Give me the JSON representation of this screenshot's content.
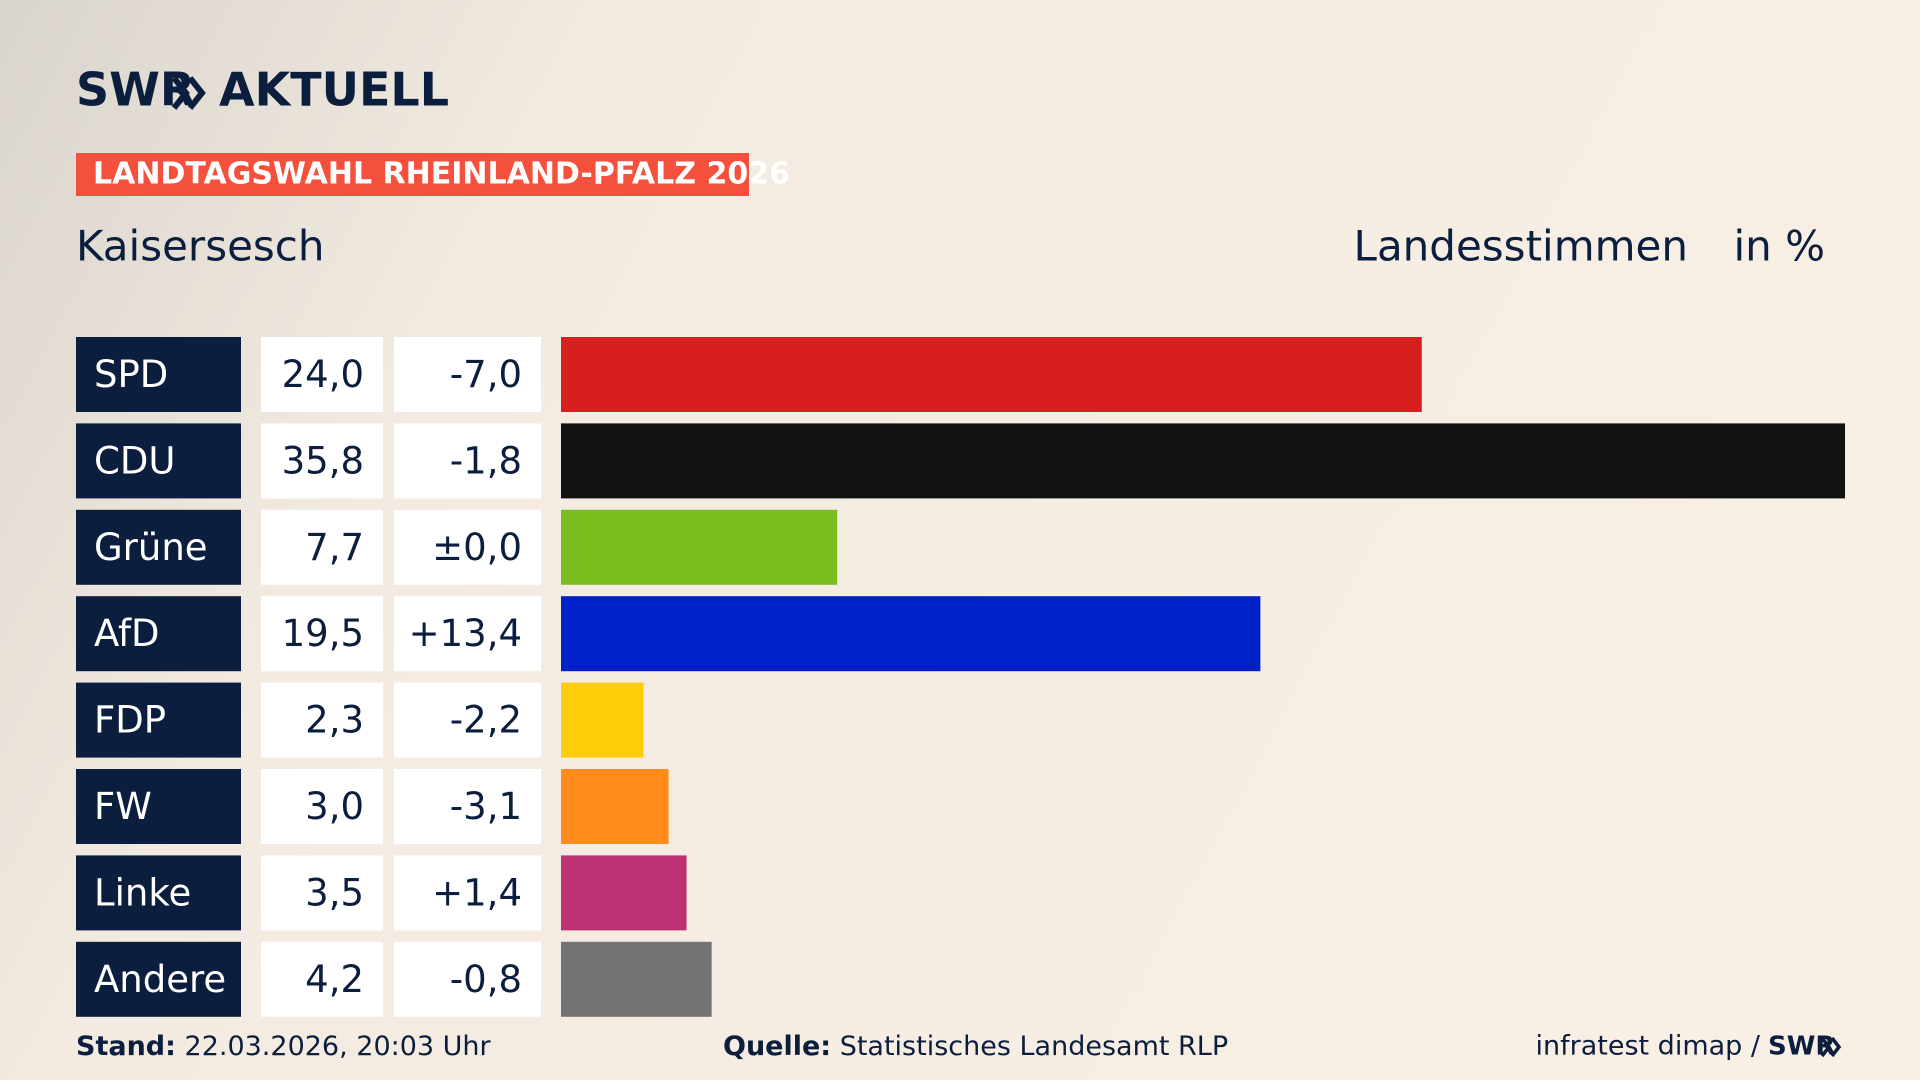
{
  "header": {
    "logo_left": "SWR",
    "logo_right": "AKTUELL",
    "banner": "LANDTAGSWAHL RHEINLAND-PFALZ 2026"
  },
  "chart_data": {
    "type": "bar",
    "title": "Kaisersesch",
    "subtitle": "Landesstimmen",
    "unit_label": "in %",
    "categories": [
      "SPD",
      "CDU",
      "Grüne",
      "AfD",
      "FDP",
      "FW",
      "Linke",
      "Andere"
    ],
    "values": [
      24.0,
      35.8,
      7.7,
      19.5,
      2.3,
      3.0,
      3.5,
      4.2
    ],
    "value_labels": [
      "24,0",
      "35,8",
      "7,7",
      "19,5",
      "2,3",
      "3,0",
      "3,5",
      "4,2"
    ],
    "changes": [
      -7.0,
      -1.8,
      0.0,
      13.4,
      -2.2,
      -3.1,
      1.4,
      -0.8
    ],
    "change_labels": [
      "-7,0",
      "-1,8",
      "±0,0",
      "+13,4",
      "-2,2",
      "-3,1",
      "+1,4",
      "-0,8"
    ],
    "colors": [
      "#d81f20",
      "#111111",
      "#7abd1e",
      "#0020c8",
      "#ffcc0a",
      "#ff8c1a",
      "#bd3275",
      "#737373"
    ]
  },
  "footer": {
    "stand_label": "Stand:",
    "stand": "22.03.2026, 20:03 Uhr",
    "source_label": "Quelle:",
    "source": "Statistisches Landesamt RLP",
    "credit": "infratest dimap /",
    "credit_logo": "SWR"
  }
}
